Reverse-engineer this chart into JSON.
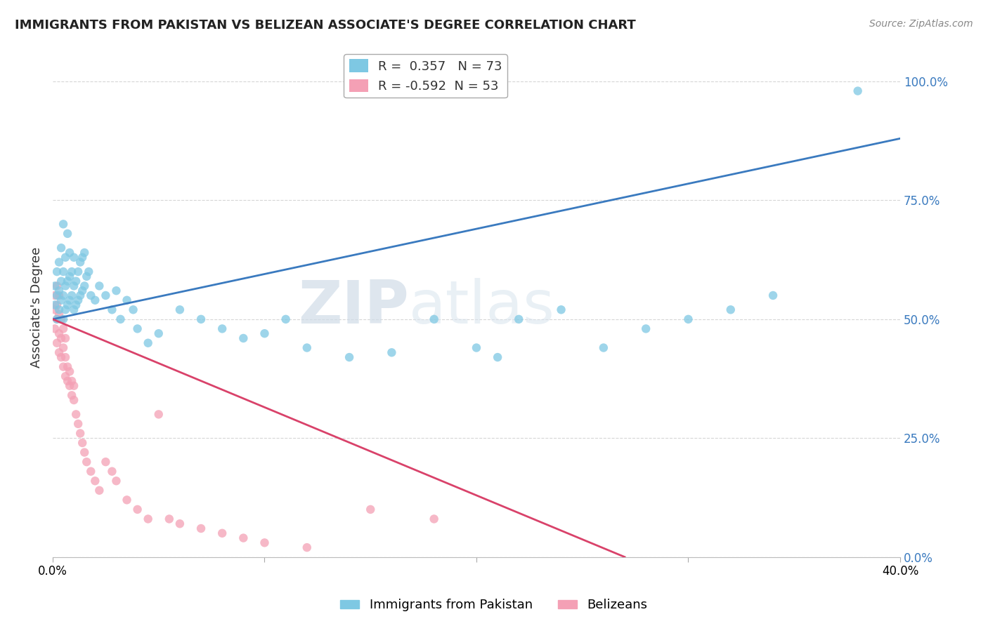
{
  "title": "IMMIGRANTS FROM PAKISTAN VS BELIZEAN ASSOCIATE'S DEGREE CORRELATION CHART",
  "source": "Source: ZipAtlas.com",
  "ylabel": "Associate's Degree",
  "xmin": 0.0,
  "xmax": 0.4,
  "ymin": 0.0,
  "ymax": 1.05,
  "ytick_vals": [
    0.0,
    0.25,
    0.5,
    0.75,
    1.0
  ],
  "ytick_labels": [
    "0.0%",
    "25.0%",
    "50.0%",
    "75.0%",
    "100.0%"
  ],
  "xtick_vals": [
    0.0,
    0.1,
    0.2,
    0.3,
    0.4
  ],
  "xtick_labels": [
    "0.0%",
    "",
    "",
    "",
    "40.0%"
  ],
  "r1": 0.357,
  "n1": 73,
  "r2": -0.592,
  "n2": 53,
  "color_blue": "#7ec8e3",
  "color_pink": "#f4a0b5",
  "line_blue": "#3a7abf",
  "line_pink": "#d9426a",
  "watermark_zip": "ZIP",
  "watermark_atlas": "atlas",
  "legend_label1": "Immigrants from Pakistan",
  "legend_label2": "Belizeans",
  "blue_line_x0": 0.0,
  "blue_line_y0": 0.5,
  "blue_line_x1": 0.4,
  "blue_line_y1": 0.88,
  "pink_line_x0": 0.0,
  "pink_line_y0": 0.5,
  "pink_line_x1": 0.27,
  "pink_line_y1": 0.0,
  "blue_x": [
    0.001,
    0.001,
    0.002,
    0.002,
    0.002,
    0.003,
    0.003,
    0.003,
    0.004,
    0.004,
    0.004,
    0.005,
    0.005,
    0.005,
    0.005,
    0.006,
    0.006,
    0.006,
    0.007,
    0.007,
    0.007,
    0.008,
    0.008,
    0.008,
    0.009,
    0.009,
    0.01,
    0.01,
    0.01,
    0.011,
    0.011,
    0.012,
    0.012,
    0.013,
    0.013,
    0.014,
    0.014,
    0.015,
    0.015,
    0.016,
    0.017,
    0.018,
    0.02,
    0.022,
    0.025,
    0.028,
    0.03,
    0.032,
    0.035,
    0.038,
    0.04,
    0.045,
    0.05,
    0.06,
    0.07,
    0.08,
    0.09,
    0.1,
    0.11,
    0.12,
    0.14,
    0.16,
    0.18,
    0.2,
    0.21,
    0.22,
    0.24,
    0.26,
    0.28,
    0.3,
    0.32,
    0.34,
    0.38
  ],
  "blue_y": [
    0.53,
    0.57,
    0.5,
    0.55,
    0.6,
    0.52,
    0.56,
    0.62,
    0.54,
    0.58,
    0.65,
    0.5,
    0.55,
    0.6,
    0.7,
    0.52,
    0.57,
    0.63,
    0.53,
    0.58,
    0.68,
    0.54,
    0.59,
    0.64,
    0.55,
    0.6,
    0.52,
    0.57,
    0.63,
    0.53,
    0.58,
    0.54,
    0.6,
    0.55,
    0.62,
    0.56,
    0.63,
    0.57,
    0.64,
    0.59,
    0.6,
    0.55,
    0.54,
    0.57,
    0.55,
    0.52,
    0.56,
    0.5,
    0.54,
    0.52,
    0.48,
    0.45,
    0.47,
    0.52,
    0.5,
    0.48,
    0.46,
    0.47,
    0.5,
    0.44,
    0.42,
    0.43,
    0.5,
    0.44,
    0.42,
    0.5,
    0.52,
    0.44,
    0.48,
    0.5,
    0.52,
    0.55,
    0.98
  ],
  "pink_x": [
    0.001,
    0.001,
    0.001,
    0.002,
    0.002,
    0.002,
    0.002,
    0.003,
    0.003,
    0.003,
    0.003,
    0.004,
    0.004,
    0.004,
    0.005,
    0.005,
    0.005,
    0.006,
    0.006,
    0.006,
    0.007,
    0.007,
    0.008,
    0.008,
    0.009,
    0.009,
    0.01,
    0.01,
    0.011,
    0.012,
    0.013,
    0.014,
    0.015,
    0.016,
    0.018,
    0.02,
    0.022,
    0.025,
    0.028,
    0.03,
    0.035,
    0.04,
    0.045,
    0.05,
    0.055,
    0.06,
    0.07,
    0.08,
    0.09,
    0.1,
    0.12,
    0.15,
    0.18
  ],
  "pink_y": [
    0.48,
    0.52,
    0.55,
    0.45,
    0.5,
    0.53,
    0.57,
    0.43,
    0.47,
    0.51,
    0.55,
    0.42,
    0.46,
    0.5,
    0.4,
    0.44,
    0.48,
    0.38,
    0.42,
    0.46,
    0.37,
    0.4,
    0.36,
    0.39,
    0.34,
    0.37,
    0.33,
    0.36,
    0.3,
    0.28,
    0.26,
    0.24,
    0.22,
    0.2,
    0.18,
    0.16,
    0.14,
    0.2,
    0.18,
    0.16,
    0.12,
    0.1,
    0.08,
    0.3,
    0.08,
    0.07,
    0.06,
    0.05,
    0.04,
    0.03,
    0.02,
    0.1,
    0.08
  ]
}
